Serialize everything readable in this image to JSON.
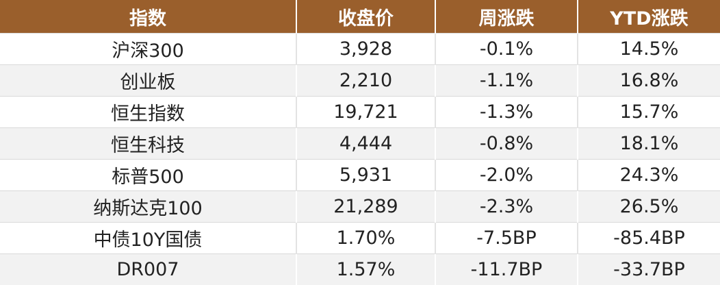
{
  "table": {
    "header_color": "#9a5f2c",
    "columns": [
      "指数",
      "收盘价",
      "周涨跌",
      "YTD涨跌"
    ],
    "rows": [
      [
        "沪深300",
        "3,928",
        "-0.1%",
        "14.5%"
      ],
      [
        "创业板",
        "2,210",
        "-1.1%",
        "16.8%"
      ],
      [
        "恒生指数",
        "19,721",
        "-1.3%",
        "15.7%"
      ],
      [
        "恒生科技",
        "4,444",
        "-0.8%",
        "18.1%"
      ],
      [
        "标普500",
        "5,931",
        "-2.0%",
        "24.3%"
      ],
      [
        "纳斯达克100",
        "21,289",
        "-2.3%",
        "26.5%"
      ],
      [
        "中债10Y国债",
        "1.70%",
        "-7.5BP",
        "-85.4BP"
      ],
      [
        "DR007",
        "1.57%",
        "-11.7BP",
        "-33.7BP"
      ]
    ]
  }
}
